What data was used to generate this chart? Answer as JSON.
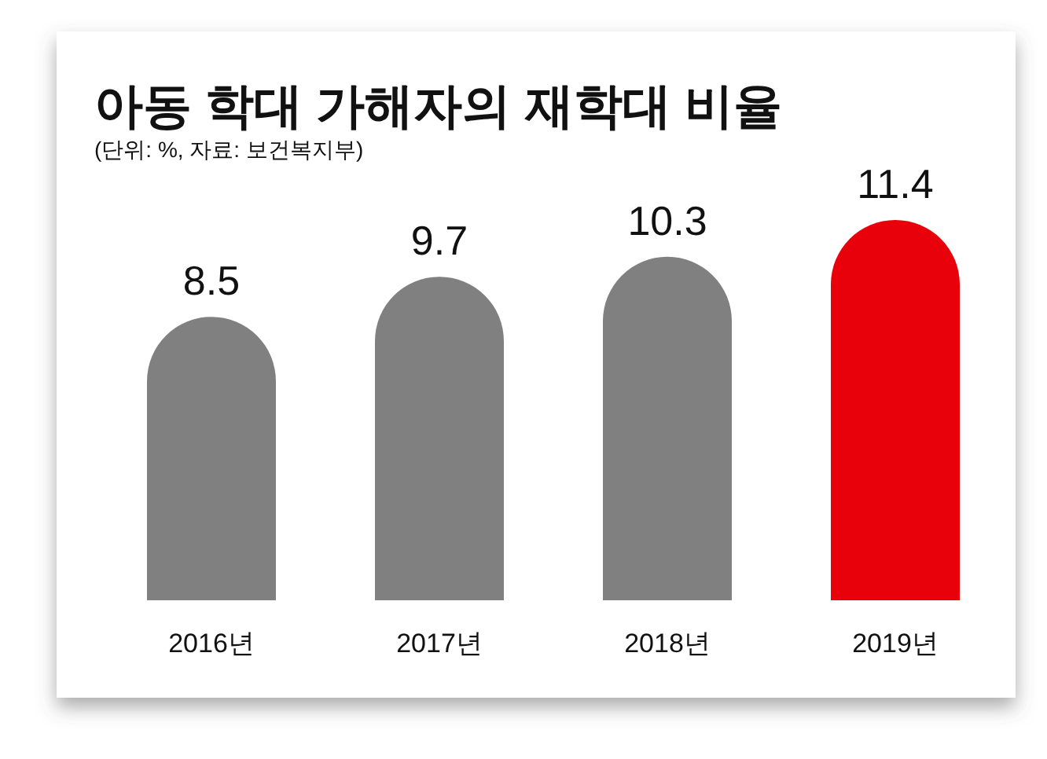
{
  "chart_data": {
    "type": "bar",
    "title": "아동 학대 가해자의 재학대 비율",
    "subtitle": "(단위: %, 자료: 보건복지부)",
    "categories": [
      "2016년",
      "2017년",
      "2018년",
      "2019년"
    ],
    "values": [
      8.5,
      9.7,
      10.3,
      11.4
    ],
    "colors": [
      "#808080",
      "#808080",
      "#808080",
      "#e8000b"
    ],
    "data_labels": true
  }
}
